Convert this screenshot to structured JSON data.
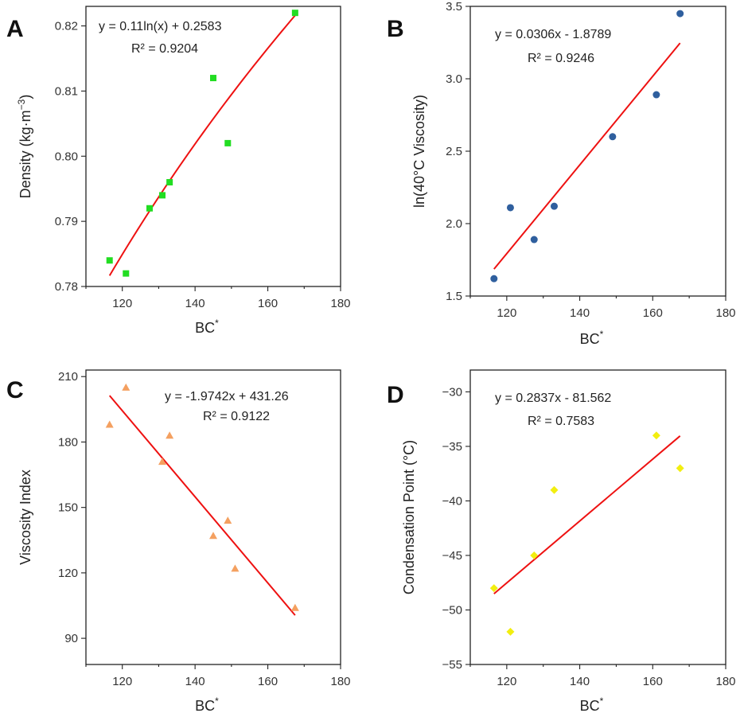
{
  "chart_data": [
    {
      "id": "A",
      "type": "scatter",
      "panel_label": "A",
      "ylabel": "Density (kg·m",
      "ylabel_sup": "−3",
      "ylabel_end": ")",
      "xlabel": "BC",
      "xlabel_sup": "*",
      "xlim": [
        110,
        180
      ],
      "ylim": [
        0.78,
        0.823
      ],
      "xticks": [
        120,
        140,
        160,
        180
      ],
      "yticks": [
        0.78,
        0.79,
        0.8,
        0.81,
        0.82
      ],
      "ytick_labels": [
        "0.78",
        "0.79",
        "0.80",
        "0.81",
        "0.82"
      ],
      "marker": "square",
      "color": "#22dd22",
      "points": [
        {
          "x": 116.5,
          "y": 0.784
        },
        {
          "x": 121,
          "y": 0.782
        },
        {
          "x": 127.5,
          "y": 0.792
        },
        {
          "x": 131,
          "y": 0.794
        },
        {
          "x": 133,
          "y": 0.796
        },
        {
          "x": 145,
          "y": 0.812
        },
        {
          "x": 149,
          "y": 0.802
        },
        {
          "x": 167.5,
          "y": 0.822
        }
      ],
      "fit": {
        "kind": "log",
        "a": 0.11,
        "b": 0.2583,
        "x_range": [
          116.5,
          167.5
        ]
      },
      "equation": "y = 0.11ln(x) + 0.2583",
      "r2": "R² = 0.9204"
    },
    {
      "id": "B",
      "type": "scatter",
      "panel_label": "B",
      "ylabel": "ln(40°C Viscosity)",
      "ylabel_sup": "",
      "ylabel_end": "",
      "xlabel": "BC",
      "xlabel_sup": "*",
      "xlim": [
        110,
        180
      ],
      "ylim": [
        1.5,
        3.5
      ],
      "xticks": [
        120,
        140,
        160,
        180
      ],
      "yticks": [
        1.5,
        2.0,
        2.5,
        3.0,
        3.5
      ],
      "ytick_labels": [
        "1.5",
        "2.0",
        "2.5",
        "3.0",
        "3.5"
      ],
      "marker": "circle",
      "color": "#2f5f9e",
      "points": [
        {
          "x": 116.5,
          "y": 1.62
        },
        {
          "x": 121,
          "y": 2.11
        },
        {
          "x": 127.5,
          "y": 1.89
        },
        {
          "x": 133,
          "y": 2.12
        },
        {
          "x": 149,
          "y": 2.6
        },
        {
          "x": 161,
          "y": 2.89
        },
        {
          "x": 167.5,
          "y": 3.45
        }
      ],
      "fit": {
        "kind": "linear",
        "a": 0.0306,
        "b": -1.8789,
        "x_range": [
          116.5,
          167.5
        ]
      },
      "equation": "y = 0.0306x - 1.8789",
      "r2": "R² = 0.9246"
    },
    {
      "id": "C",
      "type": "scatter",
      "panel_label": "C",
      "ylabel": "Viscosity Index",
      "ylabel_sup": "",
      "ylabel_end": "",
      "xlabel": "BC",
      "xlabel_sup": "*",
      "xlim": [
        110,
        180
      ],
      "ylim": [
        78,
        213
      ],
      "xticks": [
        120,
        140,
        160,
        180
      ],
      "yticks": [
        90,
        120,
        150,
        180,
        210
      ],
      "ytick_labels": [
        "90",
        "120",
        "150",
        "180",
        "210"
      ],
      "marker": "triangle",
      "color": "#f4a060",
      "points": [
        {
          "x": 116.5,
          "y": 188
        },
        {
          "x": 121,
          "y": 205
        },
        {
          "x": 131,
          "y": 171
        },
        {
          "x": 133,
          "y": 183
        },
        {
          "x": 145,
          "y": 137
        },
        {
          "x": 149,
          "y": 144
        },
        {
          "x": 151,
          "y": 122
        },
        {
          "x": 167.5,
          "y": 104
        }
      ],
      "fit": {
        "kind": "linear",
        "a": -1.9742,
        "b": 431.26,
        "x_range": [
          116.5,
          167.5
        ]
      },
      "equation": "y = -1.9742x + 431.26",
      "r2": "R² = 0.9122"
    },
    {
      "id": "D",
      "type": "scatter",
      "panel_label": "D",
      "ylabel": "Condensation Point (°C)",
      "ylabel_sup": "",
      "ylabel_end": "",
      "xlabel": "BC",
      "xlabel_sup": "*",
      "xlim": [
        110,
        180
      ],
      "ylim": [
        -55,
        -28
      ],
      "xticks": [
        120,
        140,
        160,
        180
      ],
      "yticks": [
        -55,
        -50,
        -45,
        -40,
        -35,
        -30
      ],
      "ytick_labels": [
        "−55",
        "−50",
        "−45",
        "−40",
        "−35",
        "−30"
      ],
      "marker": "diamond",
      "color": "#f2ee10",
      "points": [
        {
          "x": 116.5,
          "y": -48
        },
        {
          "x": 121,
          "y": -52
        },
        {
          "x": 127.5,
          "y": -45
        },
        {
          "x": 133,
          "y": -39
        },
        {
          "x": 161,
          "y": -34
        },
        {
          "x": 167.5,
          "y": -37
        }
      ],
      "fit": {
        "kind": "linear",
        "a": 0.2837,
        "b": -81.562,
        "x_range": [
          116.5,
          167.5
        ]
      },
      "equation": "y = 0.2837x - 81.562",
      "r2": "R² = 0.7583"
    }
  ]
}
